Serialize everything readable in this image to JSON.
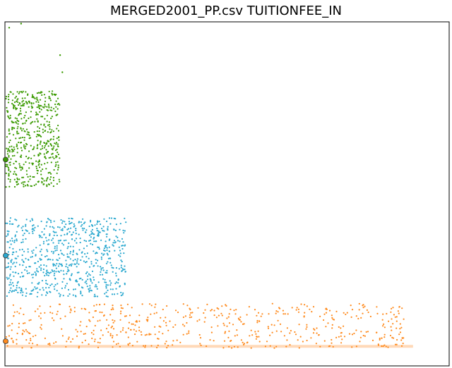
{
  "chart_data": {
    "type": "scatter",
    "title": "MERGED2001_PP.csv  TUITIONFEE_IN",
    "xlabel": "",
    "ylabel": "",
    "grid": false,
    "axes_ticks_visible": false,
    "clusters": [
      {
        "color": "#3a9a00",
        "x_range": [
          0.0,
          0.122
        ],
        "y_range": [
          0.52,
          0.8
        ],
        "count": 520,
        "outliers": [
          [
            0.008,
            0.985
          ],
          [
            0.035,
            0.997
          ],
          [
            0.123,
            0.905
          ],
          [
            0.128,
            0.855
          ]
        ],
        "marker": {
          "x": 0.0,
          "y": 0.6
        }
      },
      {
        "color": "#2aa8cf",
        "x_range": [
          0.0,
          0.272
        ],
        "y_range": [
          0.2,
          0.43
        ],
        "count": 720,
        "outliers": [],
        "marker": {
          "x": 0.0,
          "y": 0.32
        }
      },
      {
        "color": "#ff8a1d",
        "x_range": [
          0.0,
          0.9
        ],
        "y_range": [
          0.05,
          0.18
        ],
        "count": 560,
        "outliers": [],
        "marker": {
          "x": 0.0,
          "y": 0.07
        }
      }
    ],
    "baseline_band": {
      "color": "#ffd9b8",
      "y": 0.055,
      "x_range": [
        0.0,
        0.92
      ]
    }
  }
}
